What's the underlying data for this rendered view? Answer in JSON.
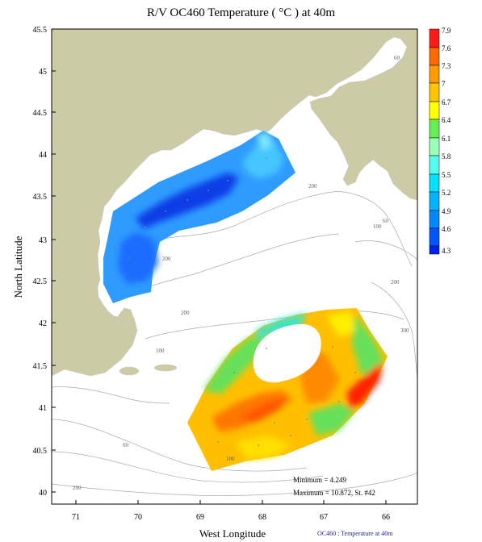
{
  "title": "R/V OC460 Temperature ( °C ) at 40m",
  "axes": {
    "xlabel": "West Longitude",
    "ylabel": "North Latitude",
    "x_ticks": [
      "71",
      "70",
      "69",
      "68",
      "67",
      "66"
    ],
    "y_ticks": [
      "45.5",
      "45",
      "44.5",
      "44",
      "43.5",
      "43",
      "42.5",
      "42",
      "41.5",
      "41",
      "40.5",
      "40"
    ]
  },
  "colorbar": {
    "labels": [
      "7.9",
      "7.6",
      "7.3",
      "7",
      "6.7",
      "6.4",
      "6.1",
      "5.8",
      "5.5",
      "5.2",
      "4.9",
      "4.6",
      "4.3"
    ],
    "colors": [
      "#ff1a1a",
      "#ff6a00",
      "#ff9a00",
      "#ffc400",
      "#ffff00",
      "#66ee55",
      "#99ffbb",
      "#55ffee",
      "#00e0ff",
      "#00b4ff",
      "#0088ff",
      "#0055ff",
      "#0022ee"
    ]
  },
  "isobath_labels": [
    "60",
    "200",
    "60",
    "100",
    "200",
    "200",
    "200",
    "100",
    "300",
    "60",
    "100",
    "200"
  ],
  "stats": {
    "minimum": "Minimum = 4.249",
    "maximum": "Maximum = 10.872, St. #42"
  },
  "footer": "OC460 : Temperature at 40m",
  "colors": {
    "land": "#cdcaa6",
    "water": "#ffffff",
    "contour": "#aaaaaa",
    "coast": "#cccccc"
  },
  "chart_data": {
    "type": "heatmap",
    "variable": "Temperature (°C)",
    "depth": "40m",
    "x_range_west_longitude": [
      71.5,
      65.5
    ],
    "y_range_north_latitude": [
      39.9,
      45.5
    ],
    "color_scale": [
      4.3,
      4.6,
      4.9,
      5.2,
      5.5,
      5.8,
      6.1,
      6.4,
      6.7,
      7.0,
      7.3,
      7.6,
      7.9
    ],
    "minimum": 4.249,
    "maximum": 10.872,
    "maximum_station": 42
  }
}
